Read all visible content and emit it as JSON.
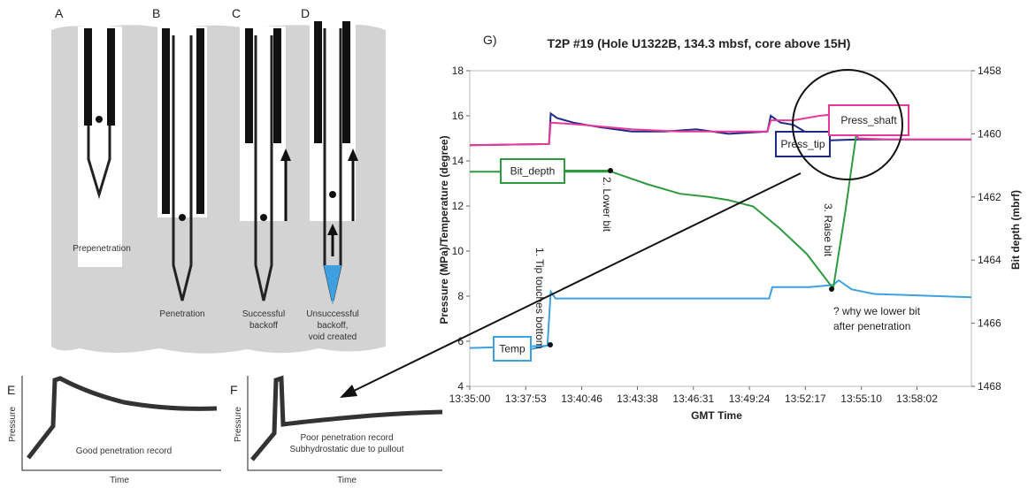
{
  "panels": [
    {
      "label": "A",
      "caption": [
        "Prepenetration"
      ]
    },
    {
      "label": "B",
      "caption": [
        "Penetration"
      ]
    },
    {
      "label": "C",
      "caption": [
        "Successful",
        "backoff"
      ]
    },
    {
      "label": "D",
      "caption": [
        "Unsuccessful",
        "backoff,",
        "void created"
      ]
    }
  ],
  "sketches": [
    {
      "label": "E",
      "y_label": "Pressure",
      "x_label": "Time",
      "caption": [
        "Good penetration record"
      ]
    },
    {
      "label": "F",
      "y_label": "Pressure",
      "x_label": "Time",
      "caption": [
        "Poor penetration record",
        "Subhydrostatic due to pullout"
      ]
    }
  ],
  "chart_data": {
    "type": "line",
    "panel_label": "G)",
    "title": "T2P #19 (Hole U1322B, 134.3 mbsf, core above 15H)",
    "x_label": "GMT Time",
    "y_label": "Pressure (MPa)/Temperature (degree)",
    "y2_label": "Bit depth (mbrf)",
    "xlim": [
      48900,
      50450
    ],
    "xticks": [
      {
        "value": 48900,
        "label": "13:35:00"
      },
      {
        "value": 49073,
        "label": "13:37:53"
      },
      {
        "value": 49246,
        "label": "13:40:46"
      },
      {
        "value": 49418,
        "label": "13:43:38"
      },
      {
        "value": 49591,
        "label": "13:46:31"
      },
      {
        "value": 49764,
        "label": "13:49:24"
      },
      {
        "value": 49937,
        "label": "13:52:17"
      },
      {
        "value": 50110,
        "label": "13:55:10"
      },
      {
        "value": 50282,
        "label": "13:58:02"
      }
    ],
    "ylim": [
      4,
      18
    ],
    "yticks": [
      4,
      6,
      8,
      10,
      12,
      14,
      16,
      18
    ],
    "y2lim": [
      1468,
      1458
    ],
    "y2ticks": [
      1458,
      1460,
      1462,
      1464,
      1466,
      1468
    ],
    "grid": false,
    "series": [
      {
        "name": "Press_tip",
        "color": "#1f2a86",
        "x": [
          48900,
          49145,
          49150,
          49170,
          49220,
          49300,
          49400,
          49500,
          49600,
          49700,
          49820,
          49830,
          49860,
          49900,
          49935,
          49941,
          49950,
          49982,
          50100,
          50450
        ],
        "values": [
          14.7,
          14.75,
          16.1,
          15.9,
          15.7,
          15.5,
          15.3,
          15.3,
          15.4,
          15.2,
          15.3,
          16.0,
          15.7,
          15.6,
          15.3,
          14.4,
          14.3,
          14.9,
          14.95,
          14.95
        ]
      },
      {
        "name": "Press_shaft",
        "color": "#e6399b",
        "x": [
          48900,
          49145,
          49150,
          49250,
          49400,
          49550,
          49700,
          49820,
          49830,
          49900,
          49980,
          50050,
          50078,
          50100,
          50200,
          50450
        ],
        "values": [
          14.7,
          14.75,
          15.7,
          15.6,
          15.4,
          15.3,
          15.3,
          15.3,
          15.8,
          15.8,
          16.0,
          16.1,
          16.2,
          15.0,
          14.95,
          14.95
        ]
      },
      {
        "name": "Temp",
        "color": "#3fa0e0",
        "x": [
          48900,
          49140,
          49150,
          49165,
          49300,
          49500,
          49700,
          49825,
          49835,
          49950,
          50023,
          50040,
          50080,
          50150,
          50250,
          50450
        ],
        "values": [
          5.7,
          5.8,
          8.2,
          7.9,
          7.9,
          7.9,
          7.9,
          7.9,
          8.4,
          8.4,
          8.5,
          8.7,
          8.3,
          8.1,
          8.05,
          7.95
        ]
      },
      {
        "name": "Bit_depth",
        "color": "#2e9a3f",
        "axis": "y2",
        "x": [
          48900,
          49337,
          49450,
          49550,
          49639,
          49700,
          49776,
          49858,
          49941,
          50023,
          50060,
          50100
        ],
        "values": [
          1461.2,
          1461.2,
          1461.6,
          1461.9,
          1462,
          1462.1,
          1462.3,
          1463,
          1463.8,
          1464.9,
          1462.5,
          1459.6
        ]
      }
    ],
    "annotations": [
      "1. Tip touches bottom",
      "2. Lower bit",
      "3. Raise bit",
      [
        "? why we lower bit",
        "after penetration"
      ]
    ]
  }
}
